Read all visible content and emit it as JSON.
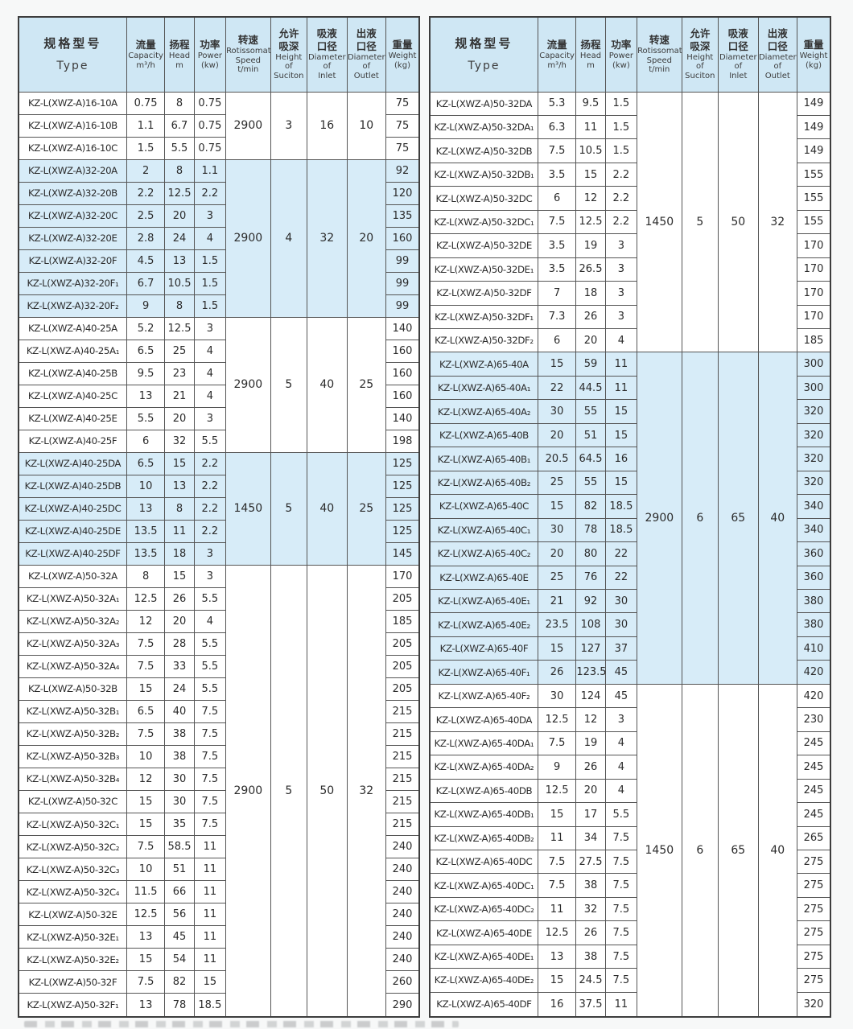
{
  "colors": {
    "group_highlight": "#d7ecf8",
    "header_background": "#cfe7f4",
    "grid_line": "#555555",
    "outer_border": "#3d3d3d",
    "page_background": "#f7f8f8"
  },
  "table_header": {
    "columns": [
      {
        "key": "type",
        "zh": [
          "规格型号"
        ],
        "en": [
          "Type"
        ]
      },
      {
        "key": "capacity",
        "zh": [
          "流量"
        ],
        "en": [
          "Capacity",
          "m³/h"
        ]
      },
      {
        "key": "head",
        "zh": [
          "扬程"
        ],
        "en": [
          "Head",
          "m"
        ]
      },
      {
        "key": "power",
        "zh": [
          "功率"
        ],
        "en": [
          "Power",
          "(kw)"
        ]
      },
      {
        "key": "speed",
        "zh": [
          "转速"
        ],
        "en": [
          "Rotissomat",
          "Speed",
          "t/min"
        ]
      },
      {
        "key": "suction",
        "zh": [
          "允许",
          "吸深"
        ],
        "en": [
          "Height",
          "of",
          "Suciton"
        ]
      },
      {
        "key": "inlet",
        "zh": [
          "吸液",
          "口径"
        ],
        "en": [
          "Diameter",
          "of",
          "Inlet"
        ]
      },
      {
        "key": "outlet",
        "zh": [
          "出液",
          "口径"
        ],
        "en": [
          "Diameter",
          "of",
          "Outlet"
        ]
      },
      {
        "key": "weight",
        "zh": [
          "重量"
        ],
        "en": [
          "Weight",
          "(kg)"
        ]
      }
    ]
  },
  "left_table": {
    "groups": [
      {
        "speed": "2900",
        "suction_height": "3",
        "inlet": "16",
        "outlet": "10",
        "highlight": false,
        "rows": [
          {
            "model": "KZ-L(XWZ-A)16-10A",
            "capacity": "0.75",
            "head": "8",
            "power": "0.75",
            "weight": "75"
          },
          {
            "model": "KZ-L(XWZ-A)16-10B",
            "capacity": "1.1",
            "head": "6.7",
            "power": "0.75",
            "weight": "75"
          },
          {
            "model": "KZ-L(XWZ-A)16-10C",
            "capacity": "1.5",
            "head": "5.5",
            "power": "0.75",
            "weight": "75"
          }
        ]
      },
      {
        "speed": "2900",
        "suction_height": "4",
        "inlet": "32",
        "outlet": "20",
        "highlight": true,
        "rows": [
          {
            "model": "KZ-L(XWZ-A)32-20A",
            "capacity": "2",
            "head": "8",
            "power": "1.1",
            "weight": "92"
          },
          {
            "model": "KZ-L(XWZ-A)32-20B",
            "capacity": "2.2",
            "head": "12.5",
            "power": "2.2",
            "weight": "120"
          },
          {
            "model": "KZ-L(XWZ-A)32-20C",
            "capacity": "2.5",
            "head": "20",
            "power": "3",
            "weight": "135"
          },
          {
            "model": "KZ-L(XWZ-A)32-20E",
            "capacity": "2.8",
            "head": "24",
            "power": "4",
            "weight": "160"
          },
          {
            "model": "KZ-L(XWZ-A)32-20F",
            "capacity": "4.5",
            "head": "13",
            "power": "1.5",
            "weight": "99"
          },
          {
            "model": "KZ-L(XWZ-A)32-20F₁",
            "capacity": "6.7",
            "head": "10.5",
            "power": "1.5",
            "weight": "99"
          },
          {
            "model": "KZ-L(XWZ-A)32-20F₂",
            "capacity": "9",
            "head": "8",
            "power": "1.5",
            "weight": "99"
          }
        ]
      },
      {
        "speed": "2900",
        "suction_height": "5",
        "inlet": "40",
        "outlet": "25",
        "highlight": false,
        "rows": [
          {
            "model": "KZ-L(XWZ-A)40-25A",
            "capacity": "5.2",
            "head": "12.5",
            "power": "3",
            "weight": "140"
          },
          {
            "model": "KZ-L(XWZ-A)40-25A₁",
            "capacity": "6.5",
            "head": "25",
            "power": "4",
            "weight": "160"
          },
          {
            "model": "KZ-L(XWZ-A)40-25B",
            "capacity": "9.5",
            "head": "23",
            "power": "4",
            "weight": "160"
          },
          {
            "model": "KZ-L(XWZ-A)40-25C",
            "capacity": "13",
            "head": "21",
            "power": "4",
            "weight": "160"
          },
          {
            "model": "KZ-L(XWZ-A)40-25E",
            "capacity": "5.5",
            "head": "20",
            "power": "3",
            "weight": "140"
          },
          {
            "model": "KZ-L(XWZ-A)40-25F",
            "capacity": "6",
            "head": "32",
            "power": "5.5",
            "weight": "198"
          }
        ]
      },
      {
        "speed": "1450",
        "suction_height": "5",
        "inlet": "40",
        "outlet": "25",
        "highlight": true,
        "rows": [
          {
            "model": "KZ-L(XWZ-A)40-25DA",
            "capacity": "6.5",
            "head": "15",
            "power": "2.2",
            "weight": "125"
          },
          {
            "model": "KZ-L(XWZ-A)40-25DB",
            "capacity": "10",
            "head": "13",
            "power": "2.2",
            "weight": "125"
          },
          {
            "model": "KZ-L(XWZ-A)40-25DC",
            "capacity": "13",
            "head": "8",
            "power": "2.2",
            "weight": "125"
          },
          {
            "model": "KZ-L(XWZ-A)40-25DE",
            "capacity": "13.5",
            "head": "11",
            "power": "2.2",
            "weight": "125"
          },
          {
            "model": "KZ-L(XWZ-A)40-25DF",
            "capacity": "13.5",
            "head": "18",
            "power": "3",
            "weight": "145"
          }
        ]
      },
      {
        "speed": "2900",
        "suction_height": "5",
        "inlet": "50",
        "outlet": "32",
        "highlight": false,
        "rows": [
          {
            "model": "KZ-L(XWZ-A)50-32A",
            "capacity": "8",
            "head": "15",
            "power": "3",
            "weight": "170"
          },
          {
            "model": "KZ-L(XWZ-A)50-32A₁",
            "capacity": "12.5",
            "head": "26",
            "power": "5.5",
            "weight": "205"
          },
          {
            "model": "KZ-L(XWZ-A)50-32A₂",
            "capacity": "12",
            "head": "20",
            "power": "4",
            "weight": "185"
          },
          {
            "model": "KZ-L(XWZ-A)50-32A₃",
            "capacity": "7.5",
            "head": "28",
            "power": "5.5",
            "weight": "205"
          },
          {
            "model": "KZ-L(XWZ-A)50-32A₄",
            "capacity": "7.5",
            "head": "33",
            "power": "5.5",
            "weight": "205"
          },
          {
            "model": "KZ-L(XWZ-A)50-32B",
            "capacity": "15",
            "head": "24",
            "power": "5.5",
            "weight": "205"
          },
          {
            "model": "KZ-L(XWZ-A)50-32B₁",
            "capacity": "6.5",
            "head": "40",
            "power": "7.5",
            "weight": "215"
          },
          {
            "model": "KZ-L(XWZ-A)50-32B₂",
            "capacity": "7.5",
            "head": "38",
            "power": "7.5",
            "weight": "215"
          },
          {
            "model": "KZ-L(XWZ-A)50-32B₃",
            "capacity": "10",
            "head": "38",
            "power": "7.5",
            "weight": "215"
          },
          {
            "model": "KZ-L(XWZ-A)50-32B₄",
            "capacity": "12",
            "head": "30",
            "power": "7.5",
            "weight": "215"
          },
          {
            "model": "KZ-L(XWZ-A)50-32C",
            "capacity": "15",
            "head": "30",
            "power": "7.5",
            "weight": "215"
          },
          {
            "model": "KZ-L(XWZ-A)50-32C₁",
            "capacity": "15",
            "head": "35",
            "power": "7.5",
            "weight": "215"
          },
          {
            "model": "KZ-L(XWZ-A)50-32C₂",
            "capacity": "7.5",
            "head": "58.5",
            "power": "11",
            "weight": "240"
          },
          {
            "model": "KZ-L(XWZ-A)50-32C₃",
            "capacity": "10",
            "head": "51",
            "power": "11",
            "weight": "240"
          },
          {
            "model": "KZ-L(XWZ-A)50-32C₄",
            "capacity": "11.5",
            "head": "66",
            "power": "11",
            "weight": "240"
          },
          {
            "model": "KZ-L(XWZ-A)50-32E",
            "capacity": "12.5",
            "head": "56",
            "power": "11",
            "weight": "240"
          },
          {
            "model": "KZ-L(XWZ-A)50-32E₁",
            "capacity": "13",
            "head": "45",
            "power": "11",
            "weight": "240"
          },
          {
            "model": "KZ-L(XWZ-A)50-32E₂",
            "capacity": "15",
            "head": "54",
            "power": "11",
            "weight": "240"
          },
          {
            "model": "KZ-L(XWZ-A)50-32F",
            "capacity": "7.5",
            "head": "82",
            "power": "15",
            "weight": "260"
          },
          {
            "model": "KZ-L(XWZ-A)50-32F₁",
            "capacity": "13",
            "head": "78",
            "power": "18.5",
            "weight": "290"
          }
        ]
      }
    ]
  },
  "right_table": {
    "groups": [
      {
        "speed": "1450",
        "suction_height": "5",
        "inlet": "50",
        "outlet": "32",
        "highlight": false,
        "rows": [
          {
            "model": "KZ-L(XWZ-A)50-32DA",
            "capacity": "5.3",
            "head": "9.5",
            "power": "1.5",
            "weight": "149"
          },
          {
            "model": "KZ-L(XWZ-A)50-32DA₁",
            "capacity": "6.3",
            "head": "11",
            "power": "1.5",
            "weight": "149"
          },
          {
            "model": "KZ-L(XWZ-A)50-32DB",
            "capacity": "7.5",
            "head": "10.5",
            "power": "1.5",
            "weight": "149"
          },
          {
            "model": "KZ-L(XWZ-A)50-32DB₁",
            "capacity": "3.5",
            "head": "15",
            "power": "2.2",
            "weight": "155"
          },
          {
            "model": "KZ-L(XWZ-A)50-32DC",
            "capacity": "6",
            "head": "12",
            "power": "2.2",
            "weight": "155"
          },
          {
            "model": "KZ-L(XWZ-A)50-32DC₁",
            "capacity": "7.5",
            "head": "12.5",
            "power": "2.2",
            "weight": "155"
          },
          {
            "model": "KZ-L(XWZ-A)50-32DE",
            "capacity": "3.5",
            "head": "19",
            "power": "3",
            "weight": "170"
          },
          {
            "model": "KZ-L(XWZ-A)50-32DE₁",
            "capacity": "3.5",
            "head": "26.5",
            "power": "3",
            "weight": "170"
          },
          {
            "model": "KZ-L(XWZ-A)50-32DF",
            "capacity": "7",
            "head": "18",
            "power": "3",
            "weight": "170"
          },
          {
            "model": "KZ-L(XWZ-A)50-32DF₁",
            "capacity": "7.3",
            "head": "26",
            "power": "3",
            "weight": "170"
          },
          {
            "model": "KZ-L(XWZ-A)50-32DF₂",
            "capacity": "6",
            "head": "20",
            "power": "4",
            "weight": "185"
          }
        ]
      },
      {
        "speed": "2900",
        "suction_height": "6",
        "inlet": "65",
        "outlet": "40",
        "highlight": true,
        "rows": [
          {
            "model": "KZ-L(XWZ-A)65-40A",
            "capacity": "15",
            "head": "59",
            "power": "11",
            "weight": "300"
          },
          {
            "model": "KZ-L(XWZ-A)65-40A₁",
            "capacity": "22",
            "head": "44.5",
            "power": "11",
            "weight": "300"
          },
          {
            "model": "KZ-L(XWZ-A)65-40A₂",
            "capacity": "30",
            "head": "55",
            "power": "15",
            "weight": "320"
          },
          {
            "model": "KZ-L(XWZ-A)65-40B",
            "capacity": "20",
            "head": "51",
            "power": "15",
            "weight": "320"
          },
          {
            "model": "KZ-L(XWZ-A)65-40B₁",
            "capacity": "20.5",
            "head": "64.5",
            "power": "16",
            "weight": "320"
          },
          {
            "model": "KZ-L(XWZ-A)65-40B₂",
            "capacity": "25",
            "head": "55",
            "power": "15",
            "weight": "320"
          },
          {
            "model": "KZ-L(XWZ-A)65-40C",
            "capacity": "15",
            "head": "82",
            "power": "18.5",
            "weight": "340"
          },
          {
            "model": "KZ-L(XWZ-A)65-40C₁",
            "capacity": "30",
            "head": "78",
            "power": "18.5",
            "weight": "340"
          },
          {
            "model": "KZ-L(XWZ-A)65-40C₂",
            "capacity": "20",
            "head": "80",
            "power": "22",
            "weight": "360"
          },
          {
            "model": "KZ-L(XWZ-A)65-40E",
            "capacity": "25",
            "head": "76",
            "power": "22",
            "weight": "360"
          },
          {
            "model": "KZ-L(XWZ-A)65-40E₁",
            "capacity": "21",
            "head": "92",
            "power": "30",
            "weight": "380"
          },
          {
            "model": "KZ-L(XWZ-A)65-40E₂",
            "capacity": "23.5",
            "head": "108",
            "power": "30",
            "weight": "380"
          },
          {
            "model": "KZ-L(XWZ-A)65-40F",
            "capacity": "15",
            "head": "127",
            "power": "37",
            "weight": "410"
          },
          {
            "model": "KZ-L(XWZ-A)65-40F₁",
            "capacity": "26",
            "head": "123.5",
            "power": "45",
            "weight": "420"
          }
        ]
      },
      {
        "speed": "1450",
        "suction_height": "6",
        "inlet": "65",
        "outlet": "40",
        "highlight": false,
        "rows": [
          {
            "model": "KZ-L(XWZ-A)65-40F₂",
            "capacity": "30",
            "head": "124",
            "power": "45",
            "weight": "420"
          },
          {
            "model": "KZ-L(XWZ-A)65-40DA",
            "capacity": "12.5",
            "head": "12",
            "power": "3",
            "weight": "230"
          },
          {
            "model": "KZ-L(XWZ-A)65-40DA₁",
            "capacity": "7.5",
            "head": "19",
            "power": "4",
            "weight": "245"
          },
          {
            "model": "KZ-L(XWZ-A)65-40DA₂",
            "capacity": "9",
            "head": "26",
            "power": "4",
            "weight": "245"
          },
          {
            "model": "KZ-L(XWZ-A)65-40DB",
            "capacity": "12.5",
            "head": "20",
            "power": "4",
            "weight": "245"
          },
          {
            "model": "KZ-L(XWZ-A)65-40DB₁",
            "capacity": "15",
            "head": "17",
            "power": "5.5",
            "weight": "245"
          },
          {
            "model": "KZ-L(XWZ-A)65-40DB₂",
            "capacity": "11",
            "head": "34",
            "power": "7.5",
            "weight": "265"
          },
          {
            "model": "KZ-L(XWZ-A)65-40DC",
            "capacity": "7.5",
            "head": "27.5",
            "power": "7.5",
            "weight": "275"
          },
          {
            "model": "KZ-L(XWZ-A)65-40DC₁",
            "capacity": "7.5",
            "head": "38",
            "power": "7.5",
            "weight": "275"
          },
          {
            "model": "KZ-L(XWZ-A)65-40DC₂",
            "capacity": "11",
            "head": "32",
            "power": "7.5",
            "weight": "275"
          },
          {
            "model": "KZ-L(XWZ-A)65-40DE",
            "capacity": "12.5",
            "head": "26",
            "power": "7.5",
            "weight": "275"
          },
          {
            "model": "KZ-L(XWZ-A)65-40DE₁",
            "capacity": "13",
            "head": "38",
            "power": "7.5",
            "weight": "275"
          },
          {
            "model": "KZ-L(XWZ-A)65-40DE₂",
            "capacity": "15",
            "head": "24.5",
            "power": "7.5",
            "weight": "275"
          },
          {
            "model": "KZ-L(XWZ-A)65-40DF",
            "capacity": "16",
            "head": "37.5",
            "power": "11",
            "weight": "320"
          }
        ]
      }
    ]
  }
}
